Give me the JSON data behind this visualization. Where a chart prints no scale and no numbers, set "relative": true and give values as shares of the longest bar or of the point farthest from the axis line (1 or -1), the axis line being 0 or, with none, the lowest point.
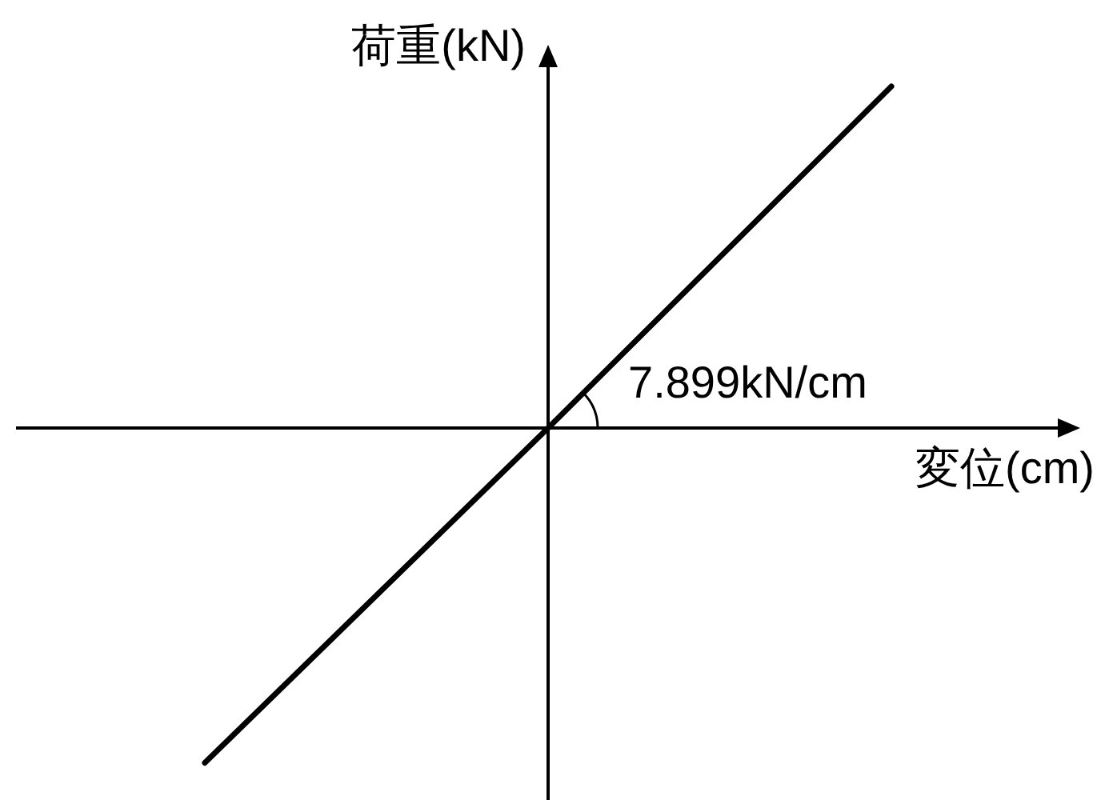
{
  "chart_data": {
    "type": "line",
    "xlabel": "変位(cm)",
    "ylabel": "荷重(kN)",
    "categories": [
      null,
      null,
      null
    ],
    "values": [
      -0.98,
      0,
      1
    ],
    "relative": true,
    "color": "#000000",
    "annotations": [
      "7.899kN/cm"
    ]
  }
}
